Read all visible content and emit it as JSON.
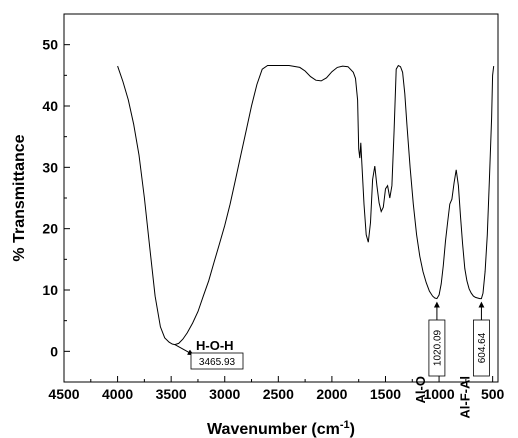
{
  "chart_data": {
    "type": "line",
    "xlabel": "Wavenumber (cm",
    "xlabel_sup": "-1",
    "xlabel_tail": ")",
    "ylabel": "% Transmittance",
    "xlim": [
      4500,
      450
    ],
    "ylim": [
      -5,
      55
    ],
    "x_ticks": [
      4500,
      4000,
      3500,
      3000,
      2500,
      2000,
      1500,
      1000,
      500
    ],
    "y_ticks": [
      0,
      10,
      20,
      30,
      40,
      50
    ],
    "grid": false,
    "series": [
      {
        "x": [
          4000,
          3950,
          3900,
          3850,
          3800,
          3750,
          3700,
          3650,
          3600,
          3560,
          3520,
          3490,
          3465.93,
          3430,
          3390,
          3350,
          3300,
          3250,
          3200,
          3150,
          3100,
          3050,
          3000,
          2950,
          2900,
          2850,
          2800,
          2750,
          2700,
          2650,
          2600,
          2500,
          2400,
          2300,
          2250,
          2200,
          2150,
          2100,
          2050,
          2000,
          1950,
          1900,
          1850,
          1800,
          1780,
          1760,
          1750,
          1740,
          1730,
          1720,
          1700,
          1680,
          1660,
          1640,
          1620,
          1600,
          1580,
          1560,
          1540,
          1520,
          1500,
          1480,
          1460,
          1440,
          1420,
          1400,
          1380,
          1360,
          1340,
          1320,
          1300,
          1270,
          1240,
          1210,
          1180,
          1150,
          1120,
          1090,
          1060,
          1040,
          1020.09,
          1000,
          980,
          960,
          940,
          920,
          900,
          880,
          860,
          840,
          820,
          800,
          780,
          760,
          740,
          720,
          700,
          680,
          660,
          640,
          620,
          604.64,
          590,
          570,
          550,
          530,
          510,
          500,
          490
        ],
        "y": [
          46.5,
          44,
          41,
          37,
          32,
          25,
          17,
          9,
          4,
          2.2,
          1.5,
          1.2,
          1.1,
          1.3,
          2,
          3,
          4.6,
          6.5,
          9,
          11.5,
          14.5,
          17.5,
          20.5,
          24,
          28,
          32,
          36,
          40,
          43.5,
          46,
          46.6,
          46.6,
          46.6,
          46.3,
          45.7,
          44.8,
          44.2,
          44.1,
          44.6,
          45.6,
          46.3,
          46.5,
          46.4,
          45.5,
          44.5,
          41,
          33,
          31.5,
          34,
          30.5,
          24,
          19,
          17.8,
          21,
          28,
          30.2,
          27,
          24.2,
          22.8,
          23.5,
          26.5,
          27,
          25,
          27,
          36,
          46,
          46.6,
          46.4,
          45.5,
          42,
          37,
          30,
          24,
          19,
          15.5,
          13,
          11.2,
          9.8,
          9,
          8.7,
          8.6,
          9.2,
          11,
          14,
          18,
          21,
          24,
          24.8,
          27.5,
          29.6,
          27,
          22,
          17.5,
          13.5,
          11.5,
          10.2,
          9.5,
          9,
          8.8,
          8.7,
          8.6,
          8.6,
          9.5,
          13,
          19,
          28,
          38,
          45,
          46.5
        ]
      }
    ],
    "annotations": [
      {
        "label": "H-O-H",
        "value": "3465.93",
        "x": 3465.93,
        "y": 1.1
      },
      {
        "label": "Al-O",
        "value": "1020.09",
        "x": 1020.09,
        "y": 8.6
      },
      {
        "label": "Al-F-Al",
        "value": "604.64",
        "x": 604.64,
        "y": 8.6
      }
    ]
  }
}
